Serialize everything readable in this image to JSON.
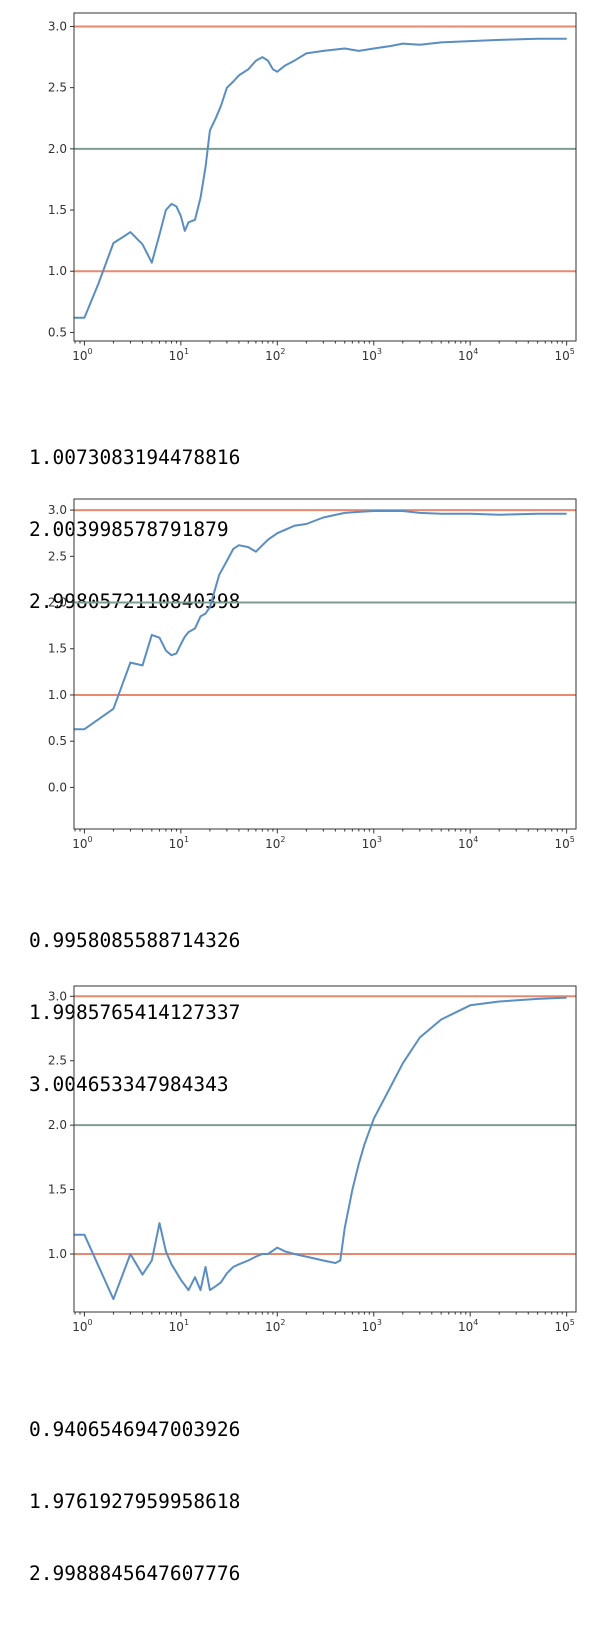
{
  "cells": [
    {
      "chart_data": {
        "type": "line",
        "x_scale": "log",
        "xlim": [
          0.78,
          125000
        ],
        "ylim": [
          0.43,
          3.11
        ],
        "x_ticks": [
          1,
          10,
          100,
          1000,
          10000,
          100000
        ],
        "x_tick_labels": [
          {
            "base": "10",
            "exp": "0"
          },
          {
            "base": "10",
            "exp": "1"
          },
          {
            "base": "10",
            "exp": "2"
          },
          {
            "base": "10",
            "exp": "3"
          },
          {
            "base": "10",
            "exp": "4"
          },
          {
            "base": "10",
            "exp": "5"
          }
        ],
        "y_ticks": [
          0.5,
          1.0,
          1.5,
          2.0,
          2.5,
          3.0
        ],
        "y_tick_labels": [
          "0.5",
          "1.0",
          "1.5",
          "2.0",
          "2.5",
          "3.0"
        ],
        "hlines": [
          {
            "y": 3.0,
            "color": "#e8896f"
          },
          {
            "y": 2.0,
            "color": "#7f9c92"
          },
          {
            "y": 1.0,
            "color": "#e8896f"
          }
        ],
        "series_color": "#5a8ec2",
        "x": [
          0.78,
          1,
          1.4,
          2,
          3,
          4,
          5,
          6,
          7,
          8,
          9,
          10,
          11,
          12,
          14,
          16,
          18,
          20,
          23,
          26,
          30,
          35,
          40,
          50,
          60,
          70,
          80,
          90,
          100,
          120,
          150,
          200,
          300,
          500,
          700,
          1000,
          1500,
          2000,
          3000,
          5000,
          10000,
          20000,
          50000,
          100000
        ],
        "y": [
          0.62,
          0.62,
          0.9,
          1.23,
          1.32,
          1.22,
          1.07,
          1.3,
          1.5,
          1.55,
          1.53,
          1.45,
          1.33,
          1.4,
          1.42,
          1.6,
          1.85,
          2.15,
          2.25,
          2.35,
          2.5,
          2.55,
          2.6,
          2.65,
          2.72,
          2.75,
          2.72,
          2.65,
          2.63,
          2.68,
          2.72,
          2.78,
          2.8,
          2.82,
          2.8,
          2.82,
          2.84,
          2.86,
          2.85,
          2.87,
          2.88,
          2.89,
          2.9,
          2.9
        ]
      },
      "output": [
        "1.0073083194478816",
        "2.003998578791879",
        "2.9980572110840398"
      ]
    },
    {
      "chart_data": {
        "type": "line",
        "x_scale": "log",
        "xlim": [
          0.78,
          125000
        ],
        "ylim": [
          -0.45,
          3.12
        ],
        "x_ticks": [
          1,
          10,
          100,
          1000,
          10000,
          100000
        ],
        "x_tick_labels": [
          {
            "base": "10",
            "exp": "0"
          },
          {
            "base": "10",
            "exp": "1"
          },
          {
            "base": "10",
            "exp": "2"
          },
          {
            "base": "10",
            "exp": "3"
          },
          {
            "base": "10",
            "exp": "4"
          },
          {
            "base": "10",
            "exp": "5"
          }
        ],
        "y_ticks": [
          0.0,
          0.5,
          1.0,
          1.5,
          2.0,
          2.5,
          3.0
        ],
        "y_tick_labels": [
          "0.0",
          "0.5",
          "1.0",
          "1.5",
          "2.0",
          "2.5",
          "3.0"
        ],
        "hlines": [
          {
            "y": 3.0,
            "color": "#e8896f"
          },
          {
            "y": 2.0,
            "color": "#7f9c92"
          },
          {
            "y": 1.0,
            "color": "#e8896f"
          }
        ],
        "series_color": "#5a8ec2",
        "x": [
          0.78,
          1,
          2,
          3,
          4,
          5,
          6,
          7,
          8,
          9,
          10,
          11,
          12,
          14,
          16,
          18,
          20,
          25,
          30,
          35,
          40,
          50,
          60,
          70,
          80,
          100,
          150,
          200,
          300,
          500,
          700,
          1000,
          2000,
          3000,
          5000,
          10000,
          20000,
          50000,
          100000
        ],
        "y": [
          0.63,
          0.63,
          0.85,
          1.35,
          1.32,
          1.65,
          1.62,
          1.48,
          1.43,
          1.45,
          1.55,
          1.63,
          1.68,
          1.72,
          1.85,
          1.88,
          1.95,
          2.3,
          2.45,
          2.58,
          2.62,
          2.6,
          2.55,
          2.62,
          2.68,
          2.75,
          2.83,
          2.85,
          2.92,
          2.97,
          2.98,
          2.99,
          2.99,
          2.97,
          2.96,
          2.96,
          2.95,
          2.96,
          2.96
        ]
      },
      "output": [
        "0.9958085588714326",
        "1.9985765414127337",
        "3.004653347984343"
      ]
    },
    {
      "chart_data": {
        "type": "line",
        "x_scale": "log",
        "xlim": [
          0.78,
          125000
        ],
        "ylim": [
          0.55,
          3.08
        ],
        "x_ticks": [
          1,
          10,
          100,
          1000,
          10000,
          100000
        ],
        "x_tick_labels": [
          {
            "base": "10",
            "exp": "0"
          },
          {
            "base": "10",
            "exp": "1"
          },
          {
            "base": "10",
            "exp": "2"
          },
          {
            "base": "10",
            "exp": "3"
          },
          {
            "base": "10",
            "exp": "4"
          },
          {
            "base": "10",
            "exp": "5"
          }
        ],
        "y_ticks": [
          1.0,
          1.5,
          2.0,
          2.5,
          3.0
        ],
        "y_tick_labels": [
          "1.0",
          "1.5",
          "2.0",
          "2.5",
          "3.0"
        ],
        "hlines": [
          {
            "y": 3.0,
            "color": "#e8896f"
          },
          {
            "y": 2.0,
            "color": "#7f9c92"
          },
          {
            "y": 1.0,
            "color": "#e8896f"
          }
        ],
        "series_color": "#5a8ec2",
        "x": [
          0.78,
          1,
          2,
          3,
          4,
          5,
          6,
          7,
          8,
          10,
          12,
          14,
          16,
          18,
          20,
          23,
          26,
          30,
          35,
          40,
          50,
          60,
          70,
          80,
          100,
          120,
          150,
          200,
          300,
          400,
          450,
          500,
          600,
          700,
          800,
          1000,
          1500,
          2000,
          3000,
          5000,
          10000,
          20000,
          50000,
          100000
        ],
        "y": [
          1.15,
          1.15,
          0.65,
          1.0,
          0.84,
          0.95,
          1.24,
          1.02,
          0.92,
          0.8,
          0.72,
          0.82,
          0.72,
          0.9,
          0.72,
          0.75,
          0.78,
          0.85,
          0.9,
          0.92,
          0.95,
          0.98,
          1.0,
          1.0,
          1.05,
          1.02,
          1.0,
          0.98,
          0.95,
          0.93,
          0.95,
          1.2,
          1.5,
          1.7,
          1.85,
          2.05,
          2.3,
          2.48,
          2.68,
          2.82,
          2.93,
          2.96,
          2.98,
          2.99
        ]
      },
      "output": [
        "0.9406546947003926",
        "1.9761927959958618",
        "2.9988845647607776"
      ]
    }
  ]
}
